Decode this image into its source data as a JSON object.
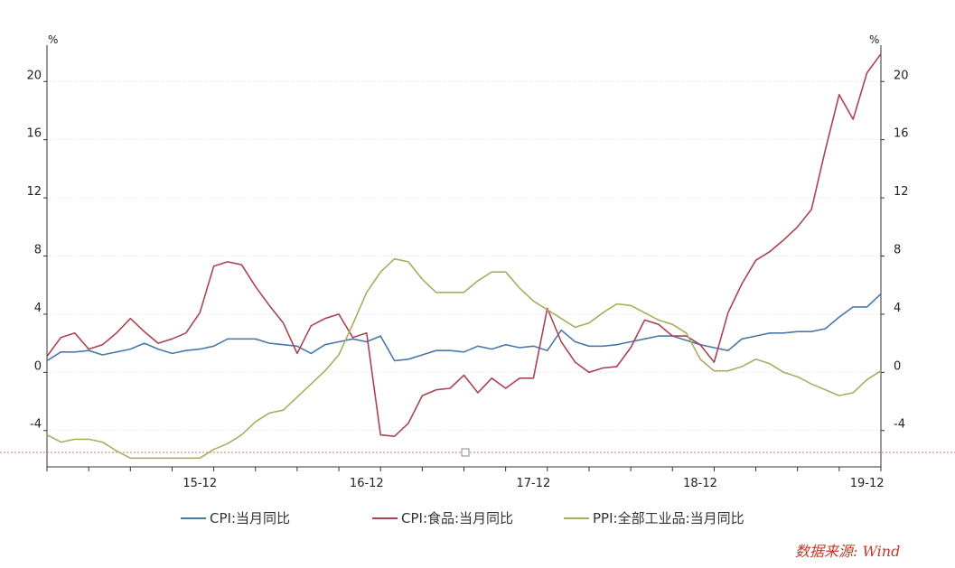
{
  "chart_data": {
    "type": "line",
    "unit_left": "%",
    "unit_right": "%",
    "ylim": [
      -6.5,
      22.5
    ],
    "y_ticks": [
      -4,
      0,
      4,
      8,
      12,
      16,
      20
    ],
    "x_tick_labels": [
      "15-12",
      "16-12",
      "17-12",
      "18-12",
      "19-12"
    ],
    "legend_position": "bottom",
    "grid": "horizontal dotted",
    "x": [
      "2015-01",
      "2015-02",
      "2015-03",
      "2015-04",
      "2015-05",
      "2015-06",
      "2015-07",
      "2015-08",
      "2015-09",
      "2015-10",
      "2015-11",
      "2015-12",
      "2016-01",
      "2016-02",
      "2016-03",
      "2016-04",
      "2016-05",
      "2016-06",
      "2016-07",
      "2016-08",
      "2016-09",
      "2016-10",
      "2016-11",
      "2016-12",
      "2017-01",
      "2017-02",
      "2017-03",
      "2017-04",
      "2017-05",
      "2017-06",
      "2017-07",
      "2017-08",
      "2017-09",
      "2017-10",
      "2017-11",
      "2017-12",
      "2018-01",
      "2018-02",
      "2018-03",
      "2018-04",
      "2018-05",
      "2018-06",
      "2018-07",
      "2018-08",
      "2018-09",
      "2018-10",
      "2018-11",
      "2018-12",
      "2019-01",
      "2019-02",
      "2019-03",
      "2019-04",
      "2019-05",
      "2019-06",
      "2019-07",
      "2019-08",
      "2019-09",
      "2019-10",
      "2019-11",
      "2019-12",
      "2020-01"
    ],
    "series": [
      {
        "name": "CPI:当月同比",
        "color": "#4a78a8",
        "values": [
          0.8,
          1.4,
          1.4,
          1.5,
          1.2,
          1.4,
          1.6,
          2.0,
          1.6,
          1.3,
          1.5,
          1.6,
          1.8,
          2.3,
          2.3,
          2.3,
          2.0,
          1.9,
          1.8,
          1.3,
          1.9,
          2.1,
          2.3,
          2.1,
          2.5,
          0.8,
          0.9,
          1.2,
          1.5,
          1.5,
          1.4,
          1.8,
          1.6,
          1.9,
          1.7,
          1.8,
          1.5,
          2.9,
          2.1,
          1.8,
          1.8,
          1.9,
          2.1,
          2.3,
          2.5,
          2.5,
          2.2,
          1.9,
          1.7,
          1.5,
          2.3,
          2.5,
          2.7,
          2.7,
          2.8,
          2.8,
          3.0,
          3.8,
          4.5,
          4.5,
          5.4
        ]
      },
      {
        "name": "CPI食品:当月同比",
        "color": "#a84550",
        "values": [
          1.1,
          2.4,
          2.7,
          1.6,
          1.9,
          2.7,
          3.7,
          2.8,
          2.0,
          2.3,
          2.7,
          4.1,
          7.3,
          7.6,
          7.4,
          5.9,
          4.6,
          3.4,
          1.3,
          3.2,
          3.7,
          4.0,
          2.4,
          2.7,
          -4.3,
          -4.4,
          -3.5,
          -1.6,
          -1.2,
          -1.1,
          -0.2,
          -1.4,
          -0.4,
          -1.1,
          -0.4,
          -0.4,
          4.4,
          2.1,
          0.7,
          0.0,
          0.3,
          0.4,
          1.7,
          3.6,
          3.3,
          2.5,
          2.5,
          1.9,
          0.7,
          4.1,
          6.1,
          7.7,
          8.3,
          9.1,
          10.0,
          11.2,
          15.3,
          19.1,
          17.4,
          20.6,
          21.9
        ]
      },
      {
        "name": "PPI:全部工业品:当月同比",
        "color": "#a8ad60",
        "values": [
          -4.3,
          -4.8,
          -4.6,
          -4.6,
          -4.8,
          -5.4,
          -5.9,
          -5.9,
          -5.9,
          -5.9,
          -5.9,
          -5.9,
          -5.3,
          -4.9,
          -4.3,
          -3.4,
          -2.8,
          -2.6,
          -1.7,
          -0.8,
          0.1,
          1.2,
          3.3,
          5.5,
          6.9,
          7.8,
          7.6,
          6.4,
          5.5,
          5.5,
          5.5,
          6.3,
          6.9,
          6.9,
          5.8,
          4.9,
          4.3,
          3.7,
          3.1,
          3.4,
          4.1,
          4.7,
          4.6,
          4.1,
          3.6,
          3.3,
          2.7,
          0.9,
          0.1,
          0.1,
          0.4,
          0.9,
          0.6,
          0.0,
          -0.3,
          -0.8,
          -1.2,
          -1.6,
          -1.4,
          -0.5,
          0.1
        ]
      }
    ]
  },
  "legend": [
    {
      "label": "CPI:当月同比",
      "color": "#4a78a8"
    },
    {
      "label": "CPI:食品:当月同比",
      "color": "#a84550"
    },
    {
      "label": "PPI:全部工业品:当月同比",
      "color": "#a8ad60"
    }
  ],
  "source": "数据来源: Wind"
}
